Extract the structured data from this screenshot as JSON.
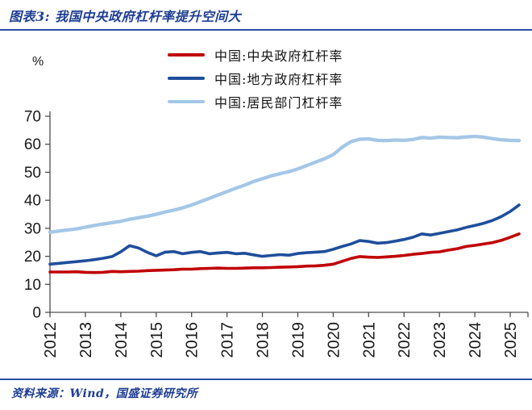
{
  "title": "图表3: 我国中央政府杠杆率提升空间大",
  "source": "资料来源：Wind，国盛证券研究所",
  "colors": {
    "central_red": "#c00000",
    "local_blue": "#1f4e9c",
    "household_lightblue": "#a4c7e7",
    "accent_text_blue": "#1f3e93",
    "divider_blue": "#2b4fa2",
    "axis_gray": "#4d4d4d",
    "tick_label": "#1a1a1a"
  },
  "chart_data": {
    "type": "line",
    "title": "图表3: 我国中央政府杠杆率提升空间大",
    "ylabel": "%",
    "xlabel": "",
    "ylim": [
      0,
      70
    ],
    "y_ticks": [
      0,
      10,
      20,
      30,
      40,
      50,
      60,
      70
    ],
    "x_ticks": [
      2012,
      2013,
      2014,
      2015,
      2016,
      2017,
      2018,
      2019,
      2020,
      2021,
      2022,
      2023,
      2024,
      2025
    ],
    "x_start": 2012.0,
    "x_step": 0.25,
    "x_note": "quarterly, 2012Q1 - 2025Q2",
    "grid": false,
    "legend_position": "top-center",
    "series": [
      {
        "name": "中国:中央政府杠杆率",
        "color": "#c00000",
        "width": 3.6,
        "values": [
          14.4,
          14.4,
          14.4,
          14.5,
          14.3,
          14.2,
          14.3,
          14.6,
          14.5,
          14.6,
          14.7,
          14.9,
          15.0,
          15.1,
          15.2,
          15.4,
          15.4,
          15.6,
          15.7,
          15.8,
          15.7,
          15.7,
          15.8,
          15.9,
          15.9,
          16.0,
          16.1,
          16.2,
          16.3,
          16.5,
          16.6,
          16.8,
          17.2,
          18.2,
          19.2,
          19.9,
          19.7,
          19.6,
          19.8,
          20.0,
          20.3,
          20.7,
          21.0,
          21.4,
          21.6,
          22.2,
          22.7,
          23.5,
          23.9,
          24.4,
          24.9,
          25.7,
          26.8,
          28.0
        ]
      },
      {
        "name": "中国:地方政府杠杆率",
        "color": "#1f4e9c",
        "width": 3.6,
        "values": [
          17.2,
          17.5,
          17.8,
          18.1,
          18.4,
          18.8,
          19.3,
          19.9,
          21.6,
          23.8,
          23.0,
          21.4,
          20.2,
          21.5,
          21.7,
          20.9,
          21.4,
          21.7,
          20.9,
          21.2,
          21.4,
          20.9,
          21.1,
          20.5,
          20.0,
          20.3,
          20.6,
          20.4,
          21.0,
          21.3,
          21.5,
          21.7,
          22.5,
          23.5,
          24.4,
          25.6,
          25.3,
          24.7,
          24.9,
          25.4,
          26.0,
          26.8,
          28.0,
          27.6,
          28.2,
          28.8,
          29.4,
          30.3,
          31.0,
          31.8,
          32.8,
          34.2,
          36.0,
          38.3
        ]
      },
      {
        "name": "中国:居民部门杠杆率",
        "color": "#a4c7e7",
        "width": 4.3,
        "values": [
          28.6,
          29.0,
          29.4,
          29.8,
          30.4,
          31.0,
          31.5,
          32.0,
          32.5,
          33.2,
          33.8,
          34.3,
          35.0,
          35.8,
          36.5,
          37.3,
          38.3,
          39.5,
          40.7,
          41.9,
          43.1,
          44.3,
          45.4,
          46.7,
          47.7,
          48.7,
          49.5,
          50.2,
          51.2,
          52.4,
          53.6,
          54.8,
          56.3,
          58.9,
          60.9,
          61.8,
          61.9,
          61.4,
          61.3,
          61.5,
          61.4,
          61.7,
          62.4,
          62.2,
          62.5,
          62.4,
          62.3,
          62.6,
          62.8,
          62.5,
          62.0,
          61.6,
          61.4,
          61.3
        ]
      }
    ]
  }
}
